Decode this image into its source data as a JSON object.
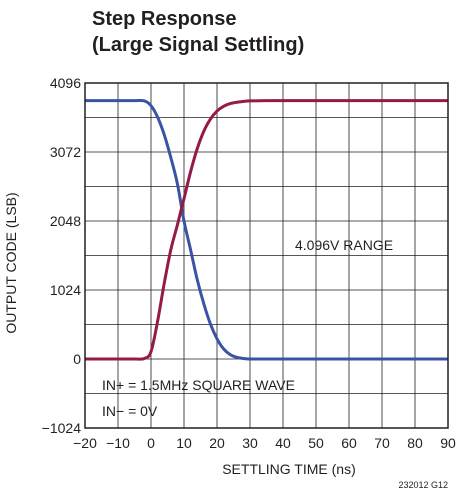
{
  "chart_data": {
    "type": "line",
    "title": "Step Response",
    "subtitle": "(Large Signal Settling)",
    "xlabel": "SETTLING TIME (ns)",
    "ylabel": "OUTPUT CODE (LSB)",
    "xlim": [
      -20,
      90
    ],
    "ylim": [
      -1024,
      4096
    ],
    "x_ticks": [
      "-20",
      "-10",
      "0",
      "10",
      "20",
      "30",
      "40",
      "50",
      "60",
      "70",
      "80",
      "90"
    ],
    "y_ticks": [
      "-1024",
      "0",
      "1024",
      "2048",
      "3072",
      "4096"
    ],
    "x_tick_labels": [
      "−20",
      "−10",
      "0",
      "10",
      "20",
      "30",
      "40",
      "50",
      "60",
      "70",
      "80",
      "90"
    ],
    "y_tick_labels": [
      "−1024",
      "0",
      "1024",
      "2048",
      "3072",
      "4096"
    ],
    "grid": true,
    "annotations": [
      "4.096V RANGE",
      "IN+ = 1.5MHz SQUARE WAVE",
      "IN− = 0V"
    ],
    "figure_id": "232012 G12",
    "series": [
      {
        "color": "#3a53a4",
        "x": [
          -20,
          -10,
          -5,
          -2,
          0,
          2,
          4,
          6,
          8,
          10,
          12,
          14,
          16,
          18,
          20,
          22,
          24,
          26,
          28,
          30,
          35,
          40,
          50,
          60,
          70,
          80,
          90
        ],
        "y": [
          3834,
          3834,
          3834,
          3830,
          3760,
          3590,
          3330,
          2990,
          2600,
          2048,
          1620,
          1180,
          820,
          520,
          300,
          150,
          65,
          25,
          8,
          0,
          0,
          0,
          0,
          0,
          0,
          0,
          0
        ]
      },
      {
        "color": "#941b47",
        "x": [
          -20,
          -10,
          -5,
          -2,
          0,
          2,
          4,
          6,
          8,
          10,
          12,
          14,
          16,
          18,
          20,
          22,
          24,
          26,
          28,
          30,
          35,
          40,
          50,
          60,
          70,
          80,
          90
        ],
        "y": [
          0,
          0,
          0,
          8,
          110,
          560,
          1120,
          1620,
          1990,
          2380,
          2780,
          3120,
          3380,
          3560,
          3680,
          3750,
          3790,
          3810,
          3822,
          3830,
          3834,
          3834,
          3834,
          3834,
          3834,
          3834,
          3834
        ]
      }
    ]
  }
}
